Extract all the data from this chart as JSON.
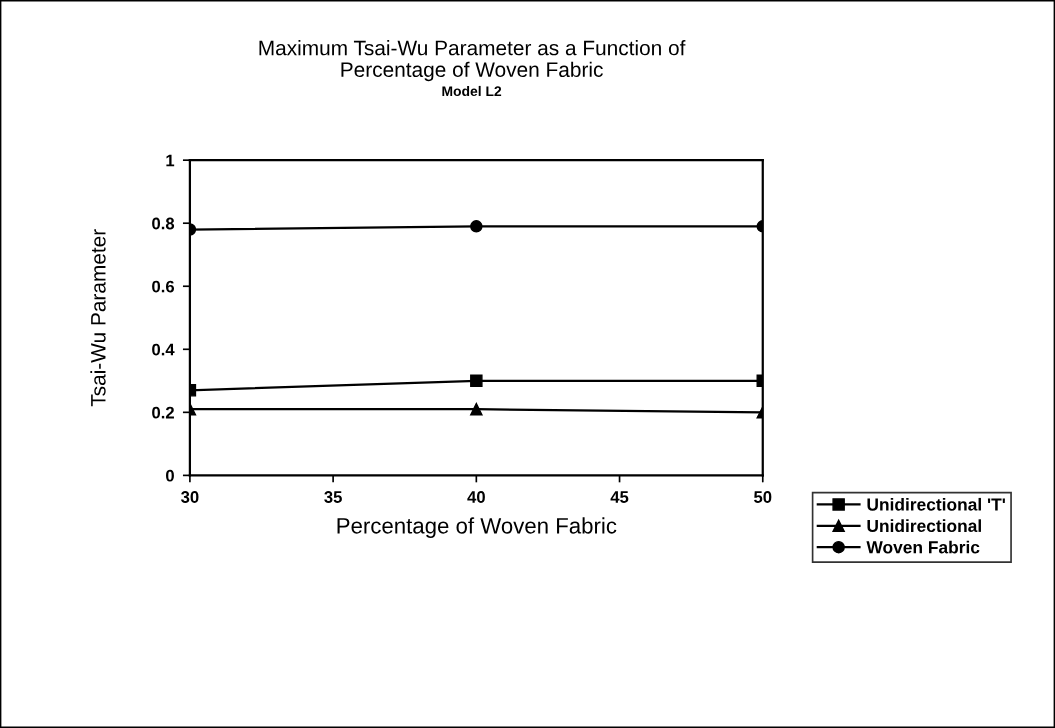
{
  "chart_data": {
    "type": "line",
    "title": "Maximum Tsai-Wu Parameter as a Function of\nPercentage of Woven Fabric",
    "subtitle": "Model L2",
    "xlabel": "Percentage of Woven Fabric",
    "ylabel": "Tsai-Wu Parameter",
    "x": [
      30,
      40,
      50
    ],
    "series": [
      {
        "name": "Unidirectional 'T'",
        "color": "#000000",
        "marker": "square",
        "values": [
          0.27,
          0.3,
          0.3
        ]
      },
      {
        "name": "Unidirectional",
        "color": "#000000",
        "marker": "triangle",
        "values": [
          0.21,
          0.21,
          0.2
        ]
      },
      {
        "name": "Woven Fabric",
        "color": "#000000",
        "marker": "circle",
        "values": [
          0.78,
          0.79,
          0.79
        ]
      }
    ],
    "xlim": [
      30,
      50
    ],
    "xticks": [
      30,
      35,
      40,
      45,
      50
    ],
    "ylim": [
      0,
      1
    ],
    "yticks": [
      0,
      {
        "value": 0.2,
        "label": "0.2"
      },
      {
        "value": 0.4,
        "label": "0.4"
      },
      {
        "value": 0.6,
        "label": "0.6"
      },
      {
        "value": 0.8,
        "label": "0.8"
      },
      1
    ],
    "grid": false,
    "legend": "right",
    "line_style": "solid"
  }
}
